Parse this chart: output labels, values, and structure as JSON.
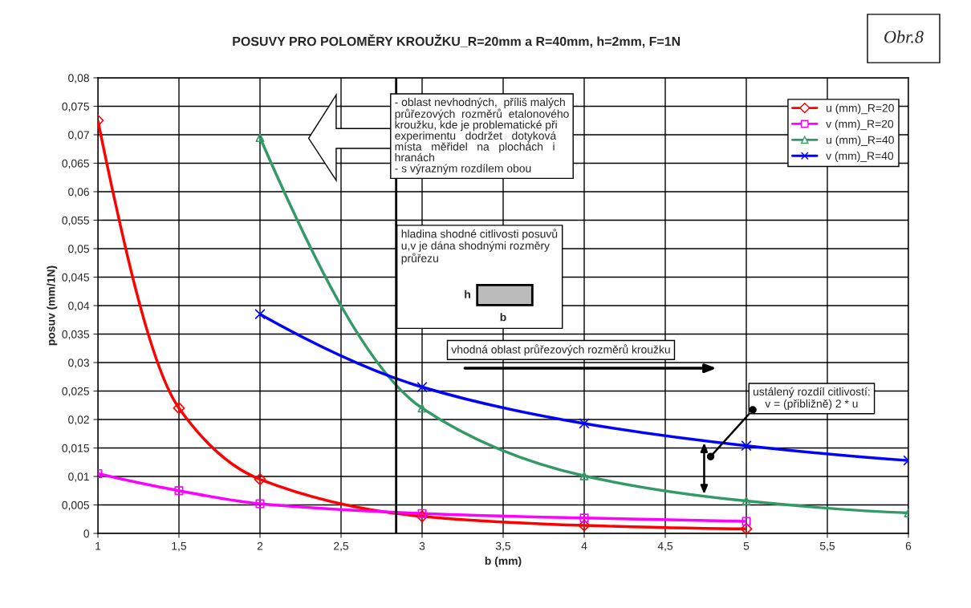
{
  "chart_data": {
    "type": "line",
    "title": "POSUVY PRO POLOMĚRY KROUŽKU_R=20mm a R=40mm, h=2mm, F=1N",
    "xlabel": "b (mm)",
    "ylabel": "posuv (mm/1N)",
    "xlim": [
      1,
      6
    ],
    "xticks": [
      1,
      {
        "value": 1.5,
        "label": "1,5"
      },
      2,
      {
        "value": 2.5,
        "label": "2,5"
      },
      3,
      {
        "value": 3.5,
        "label": "3,5"
      },
      4,
      {
        "value": 4.5,
        "label": "4,5"
      },
      5,
      {
        "value": 5.5,
        "label": "5,5"
      },
      6
    ],
    "ylim": [
      0,
      0.08
    ],
    "yticks": [
      0,
      {
        "value": 0.005,
        "label": "0,005"
      },
      {
        "value": 0.01,
        "label": "0,01"
      },
      {
        "value": 0.015,
        "label": "0,015"
      },
      {
        "value": 0.02,
        "label": "0,02"
      },
      {
        "value": 0.025,
        "label": "0,025"
      },
      {
        "value": 0.03,
        "label": "0,03"
      },
      {
        "value": 0.035,
        "label": "0,035"
      },
      {
        "value": 0.04,
        "label": "0,04"
      },
      {
        "value": 0.045,
        "label": "0,045"
      },
      {
        "value": 0.05,
        "label": "0,05"
      },
      {
        "value": 0.055,
        "label": "0,055"
      },
      {
        "value": 0.06,
        "label": "0,06"
      },
      {
        "value": 0.065,
        "label": "0,065"
      },
      {
        "value": 0.07,
        "label": "0,07"
      },
      {
        "value": 0.075,
        "label": "0,075"
      },
      {
        "value": 0.08,
        "label": "0,08"
      }
    ],
    "grid": true,
    "legend": "top right",
    "series": [
      {
        "name": "u (mm)_R=20",
        "color": "#ff0000",
        "marker": "diamond",
        "x": [
          1,
          1.5,
          2,
          3,
          4,
          5
        ],
        "values": [
          0.0725,
          0.022,
          0.0095,
          0.003,
          0.0014,
          0.0008
        ]
      },
      {
        "name": "v (mm)_R=20",
        "color": "#ff00ff",
        "marker": "square",
        "x": [
          1,
          1.5,
          2,
          3,
          4,
          5
        ],
        "values": [
          0.0105,
          0.0075,
          0.0052,
          0.0035,
          0.0027,
          0.0021
        ]
      },
      {
        "name": "u (mm)_R=40",
        "color": "#339966",
        "marker": "triangle",
        "x": [
          2,
          3,
          4,
          5,
          6
        ],
        "values": [
          0.0695,
          0.022,
          0.0101,
          0.0057,
          0.0036
        ]
      },
      {
        "name": "v (mm)_R=40",
        "color": "#0000ff",
        "marker": "cross",
        "x": [
          2,
          3,
          4,
          5,
          6
        ],
        "values": [
          0.0385,
          0.0257,
          0.0193,
          0.0154,
          0.0128
        ]
      }
    ],
    "ref_lines": [
      {
        "axis": "x",
        "value": 2.84,
        "color": "#000000"
      }
    ],
    "annotations": [
      "Obr.8",
      "- oblast nevhodných,  příliš malých\nprůřezových  rozměrů  etalonového\nkroužku, kde je problematické při\nexperimentu   dodržet   dotyková\nmísta   měřidel   na   plochách   i\nhranách\n- s výrazným rozdílem obou",
      "hladina shodné citlivosti posuvů\nu,v je dána shodnými rozměry\nprůřezu",
      "h",
      "b",
      "vhodná oblast průřezových rozměrů kroužku",
      {
        "text": "ustálený rozdíl citlivostí:\nv = (přibližně) 2 * u",
        "x": 4.78,
        "y": 0.0135
      }
    ]
  }
}
